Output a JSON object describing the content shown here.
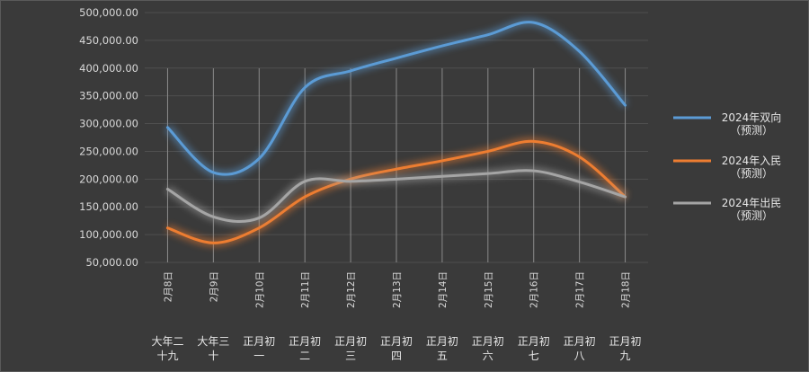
{
  "chart_data": {
    "type": "line",
    "categories": [
      "2月8日",
      "2月9日",
      "2月10日",
      "2月11日",
      "2月12日",
      "2月13日",
      "2月14日",
      "2月15日",
      "2月16日",
      "2月17日",
      "2月18日"
    ],
    "lunar_labels": [
      [
        "大年二",
        "十九"
      ],
      [
        "大年三",
        "十"
      ],
      [
        "正月初",
        "一"
      ],
      [
        "正月初",
        "二"
      ],
      [
        "正月初",
        "三"
      ],
      [
        "正月初",
        "四"
      ],
      [
        "正月初",
        "五"
      ],
      [
        "正月初",
        "六"
      ],
      [
        "正月初",
        "七"
      ],
      [
        "正月初",
        "八"
      ],
      [
        "正月初",
        "九"
      ]
    ],
    "y_ticks": [
      "50,000.00",
      "100,000.00",
      "150,000.00",
      "200,000.00",
      "250,000.00",
      "300,000.00",
      "350,000.00",
      "400,000.00",
      "450,000.00",
      "500,000.00"
    ],
    "ylim": [
      50000,
      500000
    ],
    "grid": true,
    "legend_position": "right",
    "series": [
      {
        "name": [
          "2024年双向",
          "（预测）"
        ],
        "color": "#5b9bd5",
        "values": [
          293000,
          212000,
          237000,
          365000,
          395000,
          418000,
          440000,
          460000,
          482000,
          430000,
          333000
        ]
      },
      {
        "name": [
          "2024年入民",
          "（预测）"
        ],
        "color": "#ed7d31",
        "values": [
          112000,
          85000,
          112000,
          168000,
          200000,
          218000,
          233000,
          250000,
          268000,
          240000,
          168000
        ]
      },
      {
        "name": [
          "2024年出民",
          "（预测）"
        ],
        "color": "#a5a5a5",
        "values": [
          182000,
          132000,
          130000,
          196000,
          196000,
          200000,
          205000,
          210000,
          215000,
          195000,
          168000
        ]
      }
    ]
  }
}
